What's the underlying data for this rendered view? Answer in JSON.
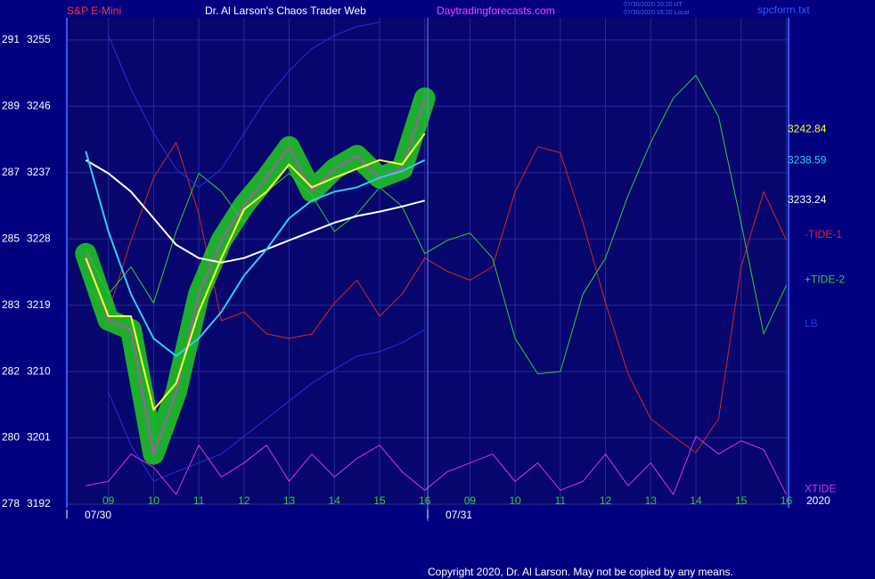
{
  "chart_data": {
    "type": "line",
    "instrument": "S&P E-Mini",
    "title": "Dr. Al Larson's Chaos Trader Web",
    "site": "Daytradingforecasts.com",
    "timestamps": [
      "07/30/2020 20:20 UT",
      "07/30/2020 15:20 Local"
    ],
    "file": "spcform.txt",
    "copyright": "Copyright 2020, Dr. Al Larson. May not be copied by any means.",
    "year": "2020",
    "dates": [
      "07/30",
      "07/31"
    ],
    "left_labels": [
      "278",
      "280",
      "282",
      "283",
      "285",
      "287",
      "289",
      "291"
    ],
    "ylim": [
      3192,
      3258
    ],
    "yticks": [
      3192,
      3201,
      3210,
      3219,
      3228,
      3237,
      3246,
      3255
    ],
    "xlim": [
      0.08,
      16.05
    ],
    "xticks": [
      {
        "value": 1,
        "label": "09"
      },
      {
        "value": 2,
        "label": "10"
      },
      {
        "value": 3,
        "label": "11"
      },
      {
        "value": 4,
        "label": "12"
      },
      {
        "value": 5,
        "label": "13"
      },
      {
        "value": 6,
        "label": "14"
      },
      {
        "value": 7,
        "label": "15"
      },
      {
        "value": 8,
        "label": "16"
      },
      {
        "value": 9,
        "label": "09"
      },
      {
        "value": 10,
        "label": "10"
      },
      {
        "value": 11,
        "label": "11"
      },
      {
        "value": 12,
        "label": "12"
      },
      {
        "value": 13,
        "label": "13"
      },
      {
        "value": 14,
        "label": "14"
      },
      {
        "value": 15,
        "label": "15"
      },
      {
        "value": 16,
        "label": "16"
      }
    ],
    "grid": true,
    "x": [
      0.5,
      1,
      1.5,
      2,
      2.5,
      3,
      3.5,
      4,
      4.5,
      5,
      5.5,
      6,
      6.5,
      7,
      7.5,
      8,
      8.5,
      9,
      9.5,
      10,
      10.5,
      11,
      11.5,
      12,
      12.5,
      13,
      13.5,
      14,
      14.5,
      15,
      15.5,
      16
    ],
    "series": [
      {
        "name": "-TIDE-1",
        "color": "#dd2222",
        "width": 1,
        "values": [
          3221.7,
          3218.1,
          3227.8,
          3236.3,
          3241.1,
          3231.4,
          3216.9,
          3218.1,
          3215.1,
          3214.5,
          3215.1,
          3219.3,
          3222.4,
          3217.5,
          3220.5,
          3225.4,
          3223.6,
          3222.4,
          3224.2,
          3234.4,
          3240.5,
          3239.7,
          3230.2,
          3219.3,
          3209.7,
          3203.6,
          3201.2,
          3199,
          3203.6,
          3224.2,
          3234.4,
          3227.8
        ]
      },
      {
        "name": "+TIDE-2",
        "color": "#33cc33",
        "width": 1,
        "values": [
          3226.6,
          3220.5,
          3224.2,
          3219.3,
          3229,
          3236.9,
          3234.4,
          3230.2,
          3234.4,
          3236.9,
          3233.9,
          3229,
          3231.4,
          3235,
          3232.4,
          3226,
          3227.8,
          3228.8,
          3225.4,
          3214.5,
          3209.7,
          3210,
          3220.5,
          3225.4,
          3233.9,
          3241.1,
          3247.1,
          3250.2,
          3244.6,
          3230.2,
          3215.1,
          3221.7
        ]
      },
      {
        "color": "#2233dd",
        "width": 1,
        "values": [
          null,
          3255.6,
          3248.3,
          3242.3,
          3237.5,
          3235,
          3237.5,
          3242.3,
          3247.1,
          3250.8,
          3253.8,
          3255.6,
          3256.8,
          3257.4,
          null,
          null,
          null,
          null,
          null,
          null,
          null,
          null,
          null,
          null,
          null,
          null,
          null,
          null,
          null,
          null,
          null,
          null
        ]
      },
      {
        "name": "LB",
        "color": "#2233dd",
        "width": 1,
        "values": [
          null,
          3207.2,
          3200,
          3195.1,
          3196.4,
          3197.6,
          3198.8,
          3201.2,
          3203.6,
          3206,
          3208.4,
          3210.3,
          3212.1,
          3212.7,
          3213.9,
          3215.7,
          null,
          null,
          null,
          null,
          null,
          null,
          null,
          null,
          null,
          null,
          null,
          null,
          null,
          null,
          null,
          null
        ]
      },
      {
        "name": "XTIDE",
        "color": "#dd33dd",
        "width": 1,
        "values": [
          3194.5,
          3195.1,
          3198.8,
          3197,
          3193.3,
          3200,
          3195.7,
          3197.6,
          3200,
          3195.1,
          3198.8,
          3195.7,
          3198.2,
          3200,
          3196.4,
          3193.9,
          3196.4,
          3197.6,
          3198.8,
          3195.1,
          3197.6,
          3193.9,
          3195.1,
          3198.8,
          3194.5,
          3197.6,
          3193.3,
          3201.2,
          3198.8,
          3200.6,
          3199.4,
          3193.3
        ]
      },
      {
        "color": "#cc44cc",
        "highlight": "#22cc22",
        "width": 1.5,
        "values": [
          3226,
          3217,
          3215.7,
          3198.8,
          3207.2,
          3220.5,
          3227.8,
          3232.6,
          3236.3,
          3240.5,
          3234.4,
          3237.5,
          3239.3,
          3236.3,
          3237.5,
          3247.1,
          null,
          null,
          null,
          null,
          null,
          null,
          null,
          null,
          null,
          null,
          null,
          null,
          null,
          null,
          null,
          null
        ]
      },
      {
        "color": "#ffffff",
        "width": 2,
        "label": 3233.24,
        "values": [
          3238.7,
          3236.9,
          3234.4,
          3230.8,
          3227.2,
          3225.4,
          3224.8,
          3225.4,
          3226.6,
          3227.8,
          3229,
          3230.2,
          3231.1,
          3231.7,
          3232.4,
          3233.2,
          null,
          null,
          null,
          null,
          null,
          null,
          null,
          null,
          null,
          null,
          null,
          null,
          null,
          null,
          null,
          null
        ]
      },
      {
        "color": "#33ccee",
        "width": 2,
        "label": 3238.59,
        "values": [
          3239.9,
          3229,
          3220.5,
          3214.5,
          3212.1,
          3214.5,
          3218.1,
          3223,
          3226.6,
          3230.8,
          3233.2,
          3234.4,
          3235,
          3236.3,
          3237.2,
          3238.7,
          null,
          null,
          null,
          null,
          null,
          null,
          null,
          null,
          null,
          null,
          null,
          null,
          null,
          null,
          null,
          null
        ]
      },
      {
        "color": "#ffff33",
        "width": 2,
        "label": 3242.84,
        "values": [
          3225.4,
          3217.5,
          3217.5,
          3204.8,
          3208.4,
          3218.1,
          3225.4,
          3232,
          3234.4,
          3238.1,
          3235,
          3236.3,
          3237.5,
          3238.7,
          3238.1,
          3242.3,
          null,
          null,
          null,
          null,
          null,
          null,
          null,
          null,
          null,
          null,
          null,
          null,
          null,
          null,
          null,
          null
        ]
      }
    ]
  }
}
